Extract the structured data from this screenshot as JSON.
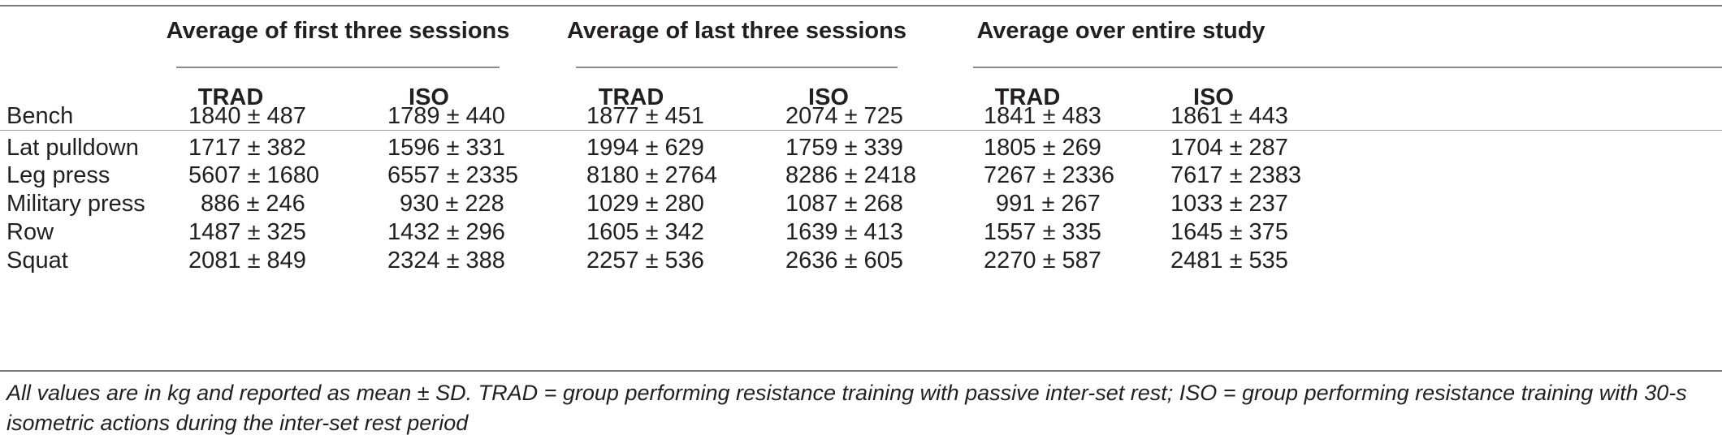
{
  "table": {
    "groups": [
      "Average of first three sessions",
      "Average of last three sessions",
      "Average over entire study"
    ],
    "subheaders": [
      "TRAD",
      "ISO",
      "TRAD",
      "ISO",
      "TRAD",
      "ISO"
    ],
    "rows": [
      {
        "label": "Bench",
        "cells": [
          "1840 ± 487",
          "1789 ± 440",
          "1877 ± 451",
          "2074 ± 725",
          "1841 ± 483",
          "1861 ± 443"
        ]
      },
      {
        "label": "Lat pulldown",
        "cells": [
          "1717 ± 382",
          "1596 ± 331",
          "1994 ± 629",
          "1759 ± 339",
          "1805 ± 269",
          "1704 ± 287"
        ]
      },
      {
        "label": "Leg press",
        "cells": [
          "5607 ± 1680",
          "6557 ± 2335",
          "8180 ± 2764",
          "8286 ± 2418",
          "7267 ± 2336",
          "7617 ± 2383"
        ]
      },
      {
        "label": "Military press",
        "cells": [
          "886 ± 246",
          "930 ± 228",
          "1029 ± 280",
          "1087 ± 268",
          "991 ± 267",
          "1033 ± 237"
        ]
      },
      {
        "label": "Row",
        "cells": [
          "1487 ± 325",
          "1432 ± 296",
          "1605 ± 342",
          "1639 ± 413",
          "1557 ± 335",
          "1645 ± 375"
        ]
      },
      {
        "label": "Squat",
        "cells": [
          "2081 ± 849",
          "2324 ± 388",
          "2257 ± 536",
          "2636 ± 605",
          "2270 ± 587",
          "2481 ± 535"
        ]
      }
    ],
    "footnote": "All values are in kg and reported as mean ± SD. TRAD = group performing resistance training with passive inter-set rest; ISO = group performing resistance training with 30-s isometric actions during the inter-set rest period"
  }
}
